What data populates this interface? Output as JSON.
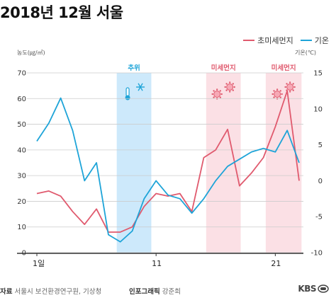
{
  "title": "2018년 12월 서울",
  "source": {
    "label": "자료",
    "value": "서울시 보건환경연구원, 기상청"
  },
  "credit": {
    "label": "인포그래픽",
    "value": "강준희"
  },
  "logo": {
    "text": "KBS"
  },
  "chart_data": {
    "type": "line",
    "title": "2018년 12월 서울",
    "x": [
      1,
      2,
      3,
      4,
      5,
      6,
      7,
      8,
      9,
      10,
      11,
      12,
      13,
      14,
      15,
      16,
      17,
      18,
      19,
      20,
      21,
      22,
      23
    ],
    "x_ticks": [
      1,
      11,
      21
    ],
    "x_tick_labels": [
      "1일",
      "11",
      "21"
    ],
    "y_left": {
      "label": "농도(㎍/㎥)",
      "lim": [
        0,
        70
      ],
      "ticks": [
        0,
        10,
        20,
        30,
        40,
        50,
        60,
        70
      ]
    },
    "y_right": {
      "label": "기온(℃)",
      "lim": [
        -10,
        15
      ],
      "ticks": [
        -10,
        -5,
        0,
        5,
        10,
        15
      ]
    },
    "series": [
      {
        "name": "초미세먼지",
        "axis": "left",
        "color": "#e05a6e",
        "values": [
          23,
          24,
          22,
          16,
          11,
          17,
          8,
          8,
          10,
          18,
          23,
          22,
          23,
          16,
          37,
          40,
          48,
          26,
          31,
          37,
          49,
          63,
          28
        ]
      },
      {
        "name": "기온",
        "axis": "right",
        "color": "#1ea4d8",
        "values": [
          5.5,
          8,
          11.5,
          7,
          0,
          2.5,
          -7.5,
          -8.5,
          -7,
          -2.5,
          0,
          -2,
          -2.5,
          -4.5,
          -2.5,
          0,
          2,
          3,
          4,
          4.5,
          4,
          7,
          2.5
        ]
      }
    ],
    "highlights": [
      {
        "label": "추위",
        "from": 7.7,
        "to": 10.6,
        "color": "#cde9fb",
        "text_color": "#1ea4d8",
        "icons": [
          "thermometer-icon",
          "snowflake-icon"
        ]
      },
      {
        "label": "미세먼지",
        "from": 15.2,
        "to": 18.1,
        "color": "#fbe0e5",
        "text_color": "#e05a6e",
        "icons": [
          "virus-icon",
          "virus-icon"
        ]
      },
      {
        "label": "미세먼지",
        "from": 20.2,
        "to": 23.2,
        "color": "#fbe0e5",
        "text_color": "#e05a6e",
        "icons": [
          "virus-icon",
          "virus-icon"
        ]
      }
    ],
    "grid": true,
    "legend_position": "top-right"
  }
}
